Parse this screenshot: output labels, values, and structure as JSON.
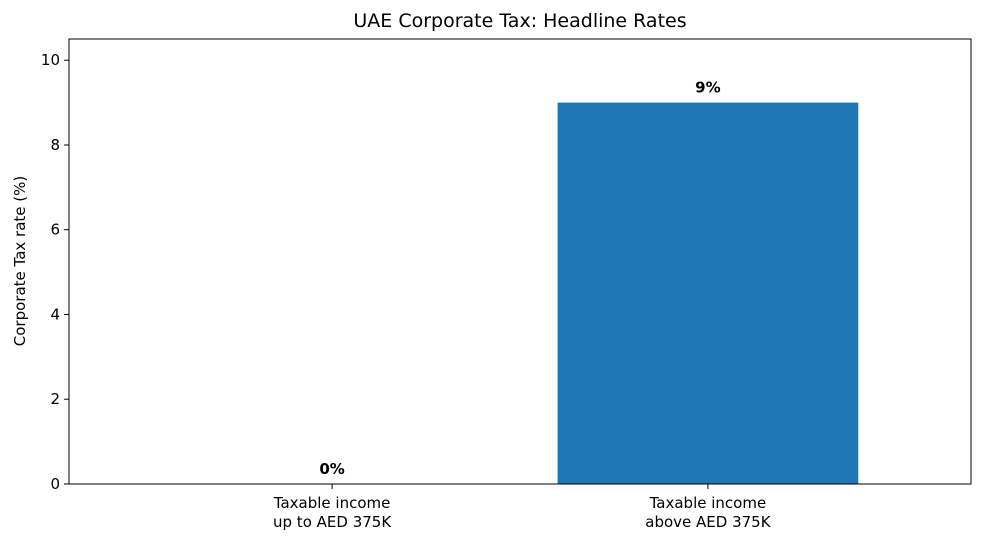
{
  "chart_data": {
    "type": "bar",
    "title": "UAE Corporate Tax: Headline Rates",
    "xlabel": "",
    "ylabel": "Corporate Tax rate (%)",
    "categories": [
      [
        "Taxable income",
        "up to AED 375K"
      ],
      [
        "Taxable income",
        "above AED 375K"
      ]
    ],
    "values": [
      0,
      9
    ],
    "data_labels": [
      "0%",
      "9%"
    ],
    "ylim": [
      0,
      10.5
    ],
    "yticks": [
      0,
      2,
      4,
      6,
      8,
      10
    ],
    "ytick_labels": [
      "0",
      "2",
      "4",
      "6",
      "8",
      "10"
    ],
    "grid": false,
    "bar_color": "#1f77b4"
  }
}
